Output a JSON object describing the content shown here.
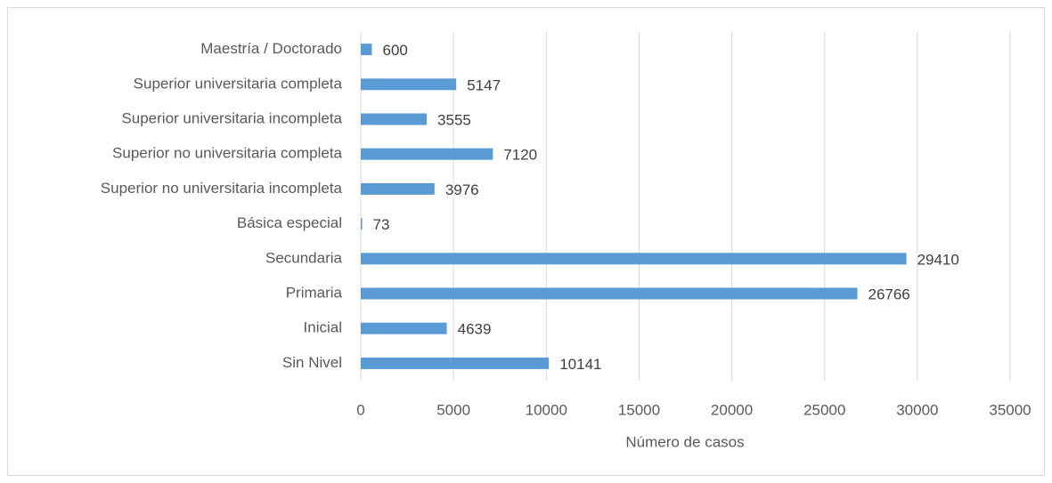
{
  "chart_data": {
    "type": "bar",
    "orientation": "horizontal",
    "x_label": "Número de casos",
    "categories": [
      "Maestría / Doctorado",
      "Superior universitaria completa",
      "Superior universitaria incompleta",
      "Superior no universitaria completa",
      "Superior no universitaria incompleta",
      "Básica especial",
      "Secundaria",
      "Primaria",
      "Inicial",
      "Sin Nivel"
    ],
    "values": [
      600,
      5147,
      3555,
      7120,
      3976,
      73,
      29410,
      26766,
      4639,
      10141
    ],
    "color": "#5b9bd5",
    "xlim": [
      0,
      35000
    ],
    "xticks": [
      0,
      5000,
      10000,
      15000,
      20000,
      25000,
      30000,
      35000
    ],
    "grid": true
  }
}
